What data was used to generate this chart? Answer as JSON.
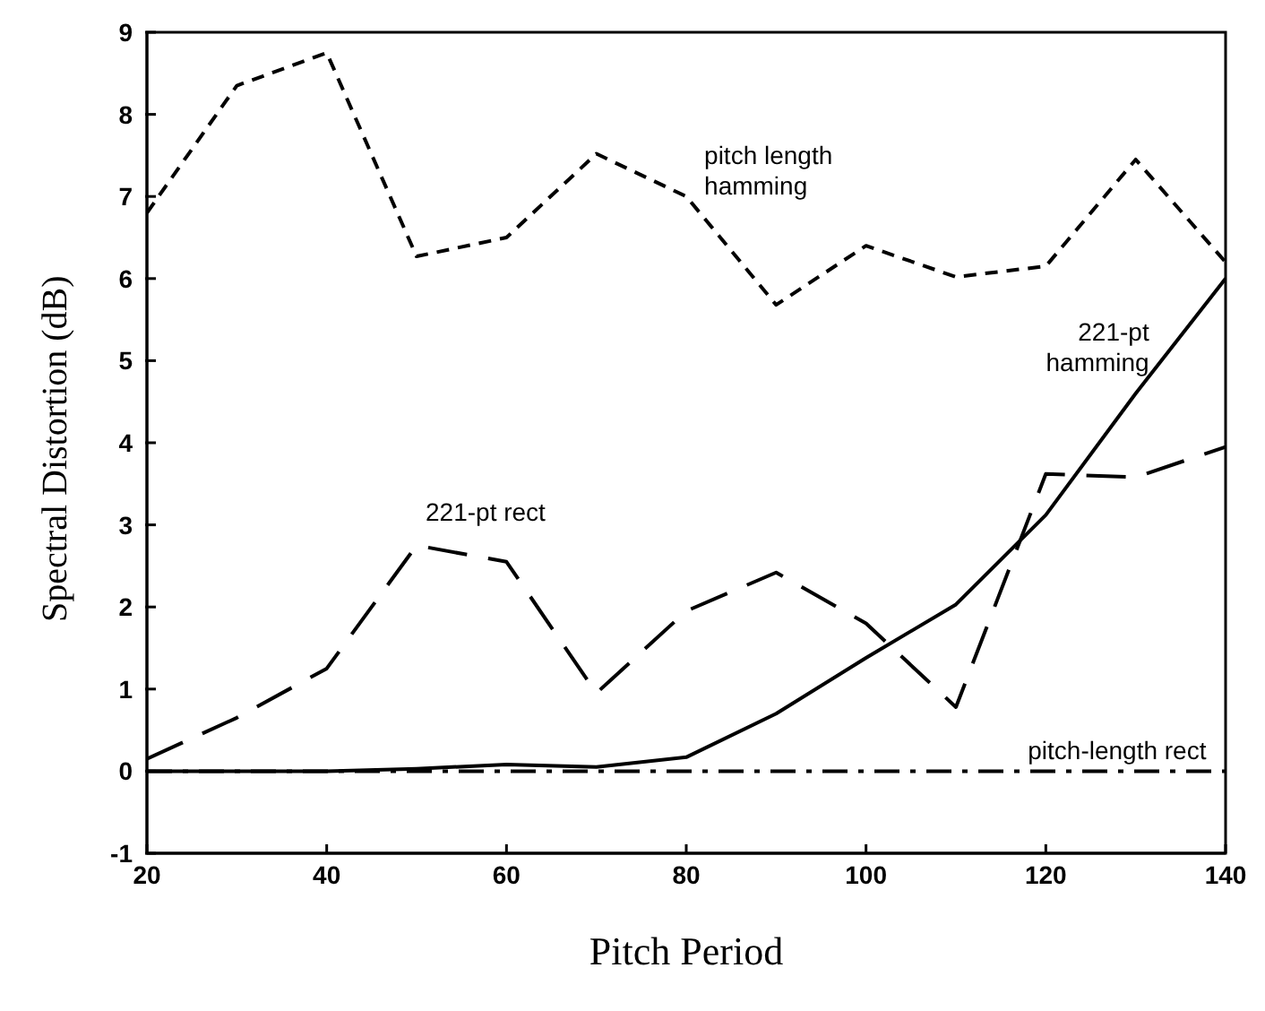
{
  "chart_data": {
    "type": "line",
    "xlabel": "Pitch Period",
    "ylabel": "Spectral Distortion (dB)",
    "x": [
      20,
      30,
      40,
      50,
      60,
      70,
      80,
      90,
      100,
      110,
      120,
      130,
      140
    ],
    "series": [
      {
        "name": "pitch length hamming",
        "color": "#000000",
        "line_style": "dashed",
        "values": [
          6.8,
          8.35,
          8.75,
          6.27,
          6.5,
          7.52,
          7.0,
          5.68,
          6.4,
          6.02,
          6.15,
          7.45,
          6.2
        ]
      },
      {
        "name": "221-pt rect",
        "color": "#000000",
        "line_style": "dashed",
        "values": [
          0.15,
          0.65,
          1.25,
          2.75,
          2.55,
          0.95,
          1.95,
          2.42,
          1.8,
          0.78,
          3.62,
          3.58,
          3.95
        ]
      },
      {
        "name": "221-pt hamming",
        "color": "#000000",
        "line_style": "solid",
        "values": [
          0,
          0,
          0,
          0.03,
          0.08,
          0.05,
          0.17,
          0.7,
          1.38,
          2.03,
          3.12,
          4.6,
          6.0
        ]
      },
      {
        "name": "pitch-length rect",
        "color": "#000000",
        "line_style": "dashdot",
        "values": [
          0,
          0,
          0,
          0,
          0,
          0,
          0,
          0,
          0,
          0,
          0,
          0,
          0
        ]
      }
    ],
    "xlim": [
      20,
      140
    ],
    "xticks": [
      20,
      40,
      60,
      80,
      100,
      120,
      140
    ],
    "ylim": [
      -1,
      9
    ],
    "yticks": [
      -1,
      0,
      1,
      2,
      3,
      4,
      5,
      6,
      7,
      8,
      9
    ],
    "grid": false,
    "legend": false,
    "marker": "none"
  }
}
